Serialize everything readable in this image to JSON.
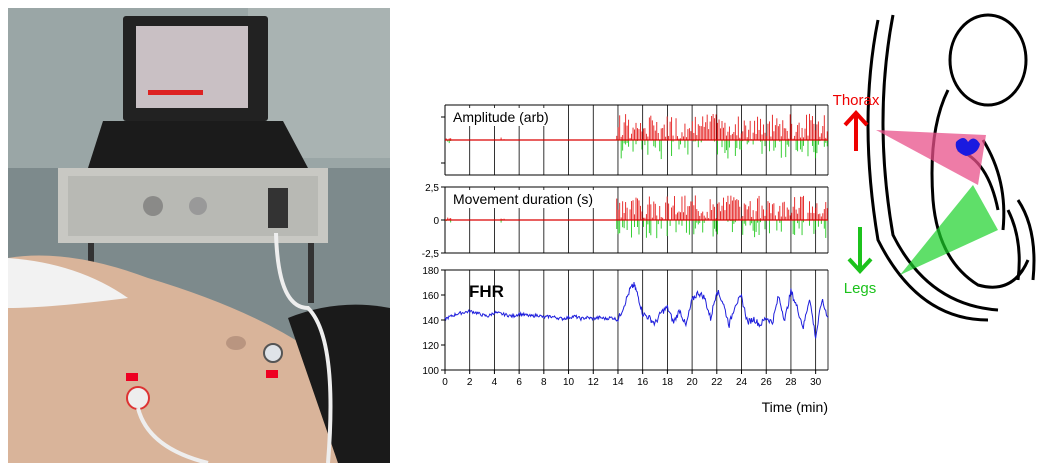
{
  "chart_data": [
    {
      "type": "bar",
      "title": "Amplitude (arb)",
      "xlim": [
        0,
        31
      ],
      "ylim": [
        -1,
        1
      ],
      "grid_x": true,
      "colors": {
        "up": "#e41b1b",
        "down": "#21c81e",
        "baseline": "#d90000"
      }
    },
    {
      "type": "bar",
      "title": "Movement duration (s)",
      "xlim": [
        0,
        31
      ],
      "ylim": [
        -2.5,
        2.5
      ],
      "yticks": [
        "2,5",
        "0",
        "-2,5"
      ],
      "grid_x": true,
      "colors": {
        "up": "#e41b1b",
        "down": "#21c81e",
        "baseline": "#d90000"
      }
    },
    {
      "type": "line",
      "title": "FHR",
      "xlabel": "Time (min)",
      "xlim": [
        0,
        31
      ],
      "ylim": [
        100,
        180
      ],
      "xticks": [
        0,
        2,
        4,
        6,
        8,
        10,
        12,
        14,
        16,
        18,
        20,
        22,
        24,
        26,
        28,
        30
      ],
      "yticks": [
        100,
        120,
        140,
        160,
        180
      ],
      "grid_x": true,
      "color": "#1f1fdc",
      "series": [
        {
          "x": [
            0,
            0.5,
            1,
            1.5,
            2,
            2.5,
            3,
            3.5,
            4,
            4.5,
            5,
            5.5,
            6,
            6.5,
            7,
            7.5,
            8,
            8.5,
            9,
            9.5,
            10,
            10.5,
            11,
            11.5,
            12,
            12.5,
            13,
            13.5,
            14,
            14.5,
            15,
            15.3,
            15.6,
            16,
            16.5,
            17,
            17.5,
            18,
            18.5,
            19,
            19.5,
            20,
            20.5,
            21,
            21.5,
            22,
            22.5,
            23,
            23.5,
            24,
            24.5,
            25,
            25.5,
            26,
            26.5,
            27,
            27.5,
            28,
            28.5,
            29,
            29.5,
            30,
            30.5,
            31
          ],
          "y": [
            141,
            143,
            145,
            146,
            147,
            146,
            144,
            143,
            146,
            145,
            144,
            143,
            145,
            144,
            143,
            144,
            142,
            143,
            142,
            141,
            142,
            143,
            141,
            142,
            141,
            142,
            141,
            142,
            140,
            152,
            165,
            168,
            160,
            145,
            142,
            137,
            146,
            150,
            138,
            148,
            135,
            156,
            162,
            158,
            141,
            164,
            154,
            136,
            153,
            158,
            138,
            141,
            136,
            142,
            138,
            159,
            140,
            163,
            150,
            134,
            158,
            126,
            156,
            142
          ]
        }
      ]
    }
  ],
  "labels": {
    "thorax": "Thorax",
    "legs": "Legs"
  }
}
